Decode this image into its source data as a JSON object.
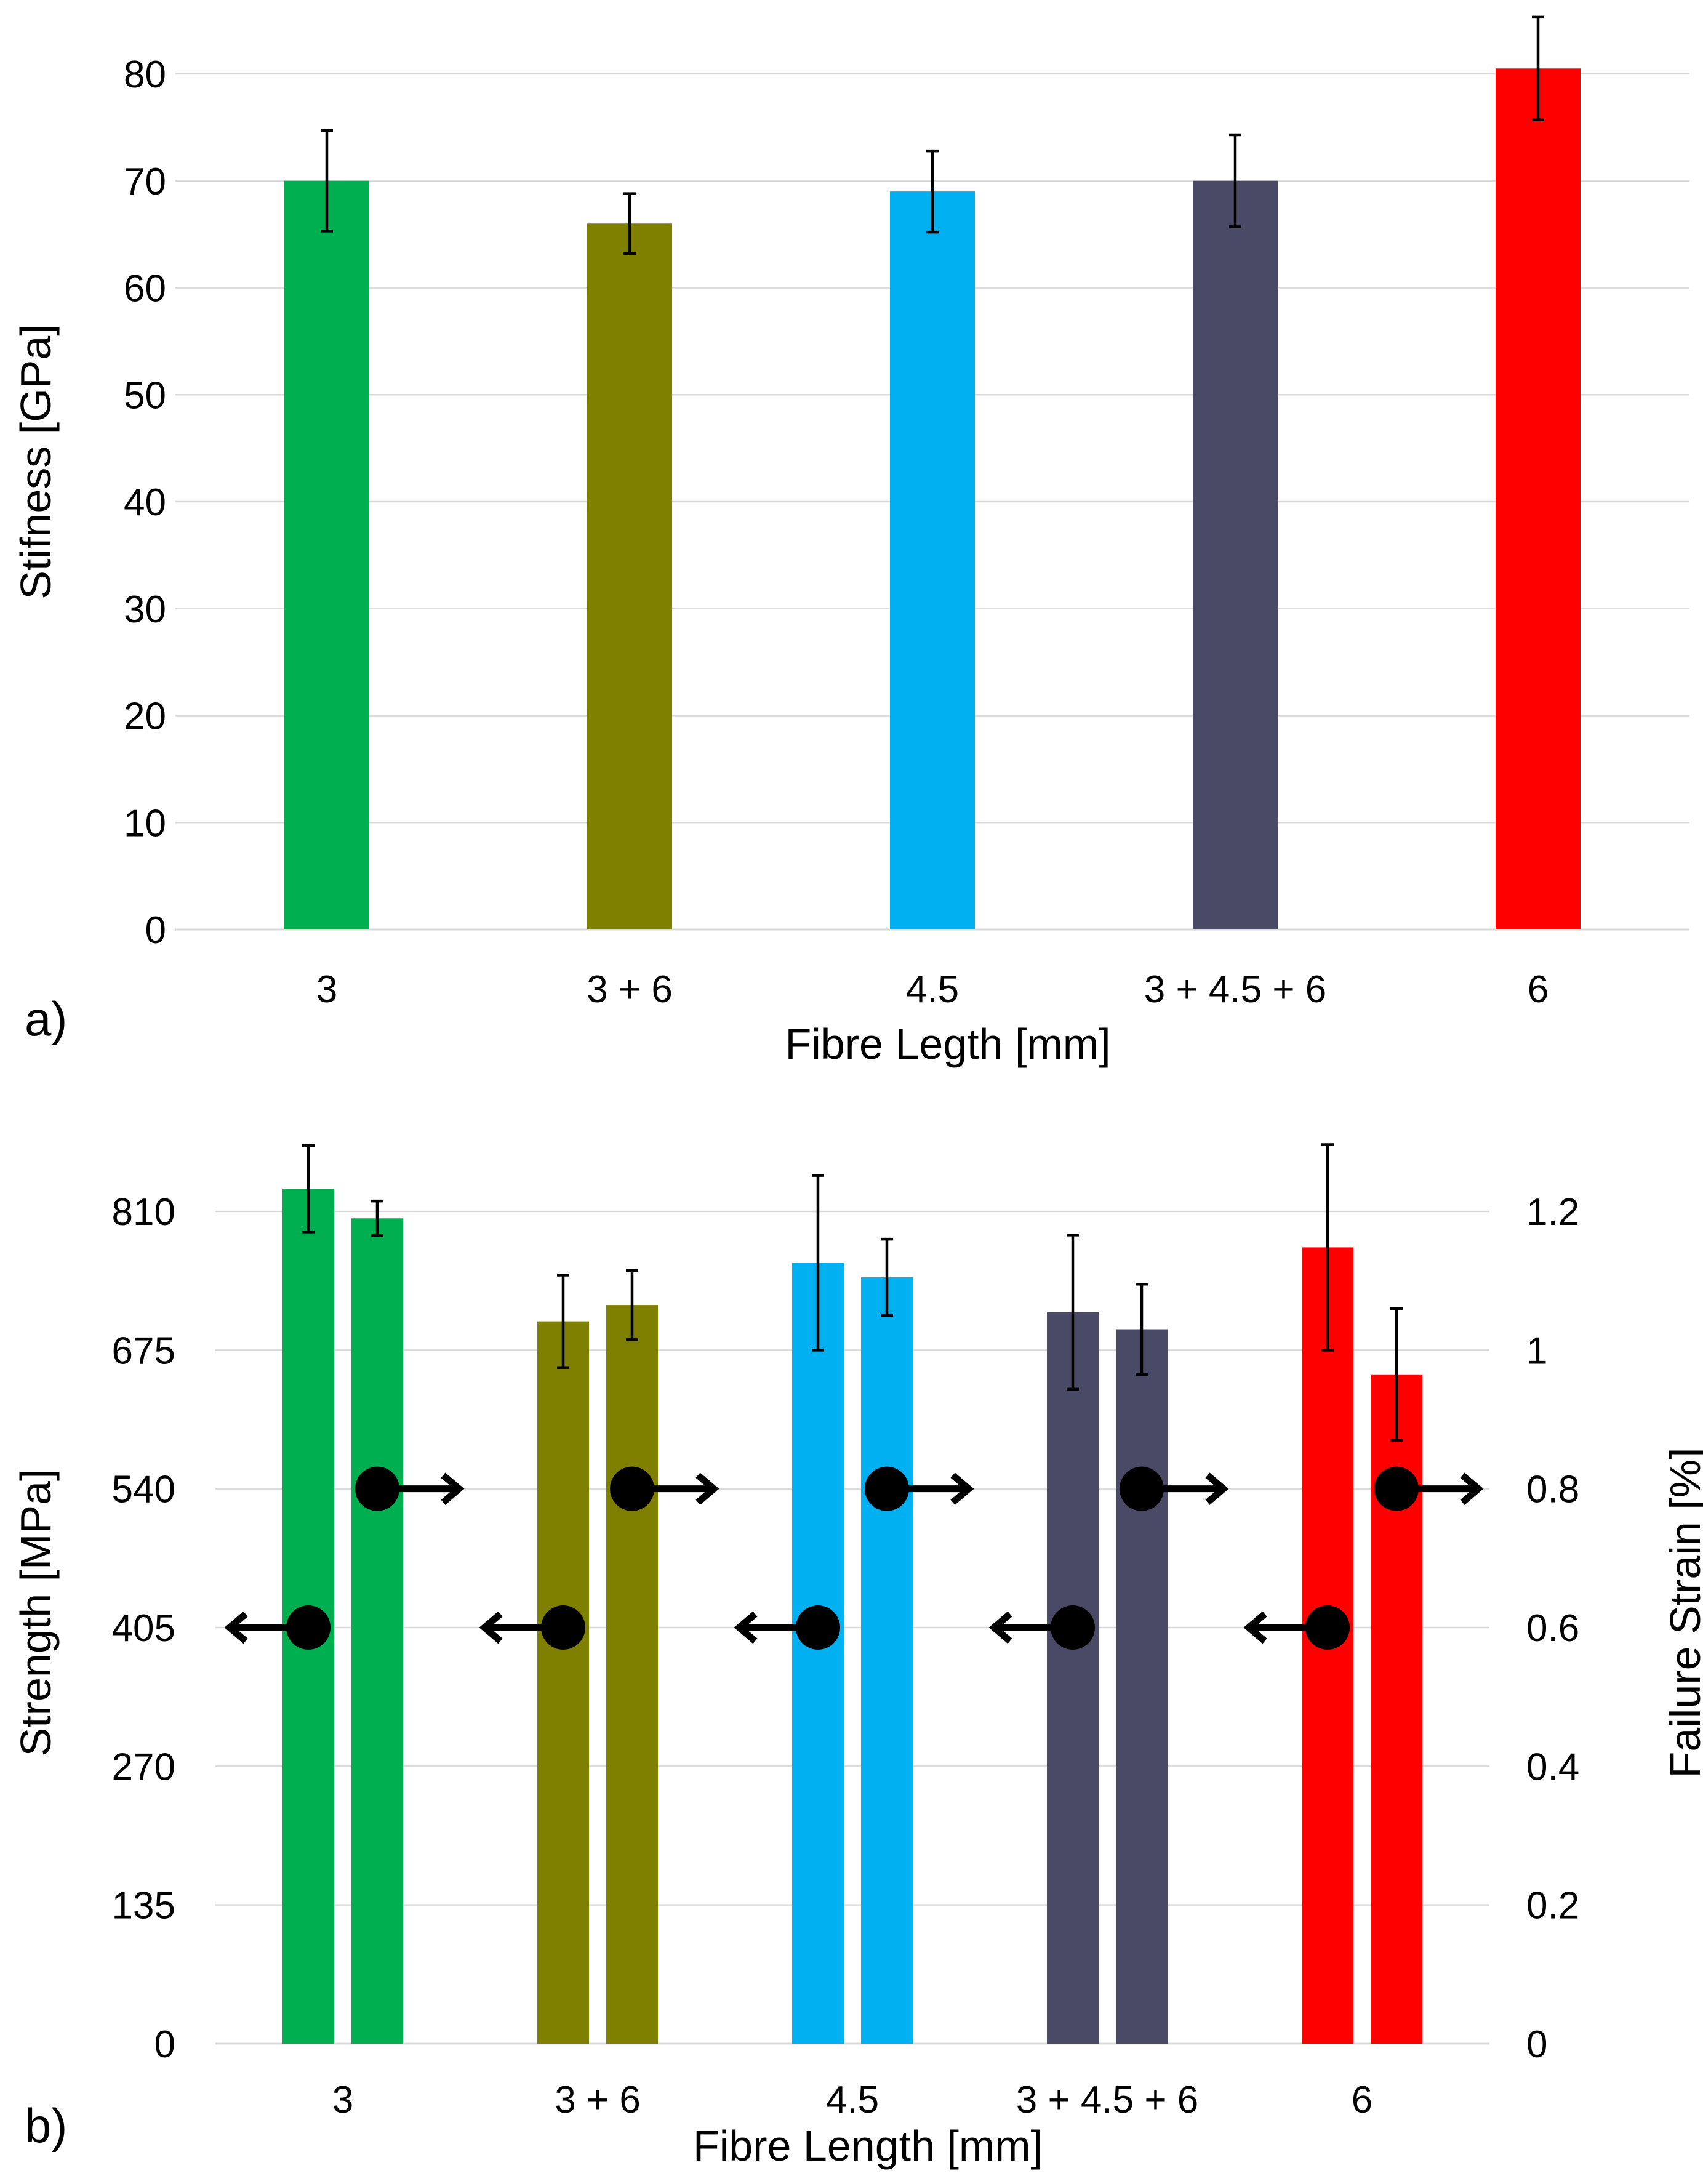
{
  "figure": {
    "panel_a_label": "a)",
    "panel_b_label": "b)"
  },
  "chart_data": [
    {
      "type": "bar",
      "panel": "a)",
      "categories": [
        "3",
        "3 + 6",
        "4.5",
        "3 + 4.5 + 6",
        "6"
      ],
      "series": [
        {
          "name": "Stiffness",
          "values": [
            70,
            66,
            69,
            70,
            80.5
          ],
          "error": [
            4.7,
            2.8,
            3.8,
            4.3,
            4.8
          ]
        }
      ],
      "colors": [
        "#00b050",
        "#808000",
        "#00b0f0",
        "#4a4a66",
        "#ff0000"
      ],
      "xlabel": "Fibre Legth [mm]",
      "ylabel": "Stifness [GPa]",
      "ylim": [
        0,
        80
      ],
      "yticks": [
        "0",
        "10",
        "20",
        "30",
        "40",
        "50",
        "60",
        "70",
        "80"
      ],
      "grid": true
    },
    {
      "type": "bar",
      "panel": "b)",
      "categories": [
        "3",
        "3 + 6",
        "4.5",
        "3 + 4.5 + 6",
        "6"
      ],
      "series": [
        {
          "name": "Strength",
          "axis": "left",
          "values": [
            832,
            703,
            760,
            712,
            775
          ],
          "error": [
            42,
            45,
            85,
            75,
            100
          ]
        },
        {
          "name": "Failure Strain",
          "axis": "right",
          "values": [
            1.19,
            1.065,
            1.105,
            1.03,
            0.965
          ],
          "error": [
            0.025,
            0.05,
            0.055,
            0.065,
            0.095
          ]
        }
      ],
      "colors": [
        "#00b050",
        "#808000",
        "#00b0f0",
        "#4a4a66",
        "#ff0000"
      ],
      "xlabel": "Fibre Length [mm]",
      "ylabel_left": "Strength [MPa]",
      "ylabel_right": "Failure Strain [%]",
      "ylim_left": [
        0,
        810
      ],
      "ylim_right": [
        0,
        1.2
      ],
      "yticks_left": [
        "0",
        "135",
        "270",
        "405",
        "540",
        "675",
        "810"
      ],
      "yticks_right": [
        "0",
        "0.2",
        "0.4",
        "0.6",
        "0.8",
        "1",
        "1.2"
      ],
      "axis_markers": [
        {
          "series": "Strength",
          "direction": "left",
          "value": 405
        },
        {
          "series": "Failure Strain",
          "direction": "right",
          "value": 0.8
        }
      ],
      "grid": true
    }
  ]
}
